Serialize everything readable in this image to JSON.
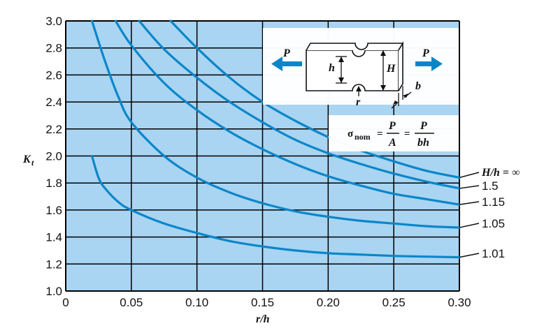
{
  "chart_data": {
    "type": "line",
    "xlabel": "r/h",
    "ylabel": "K",
    "ylabel_subscript": "t",
    "xlim": [
      0,
      0.3
    ],
    "ylim": [
      1.0,
      3.0
    ],
    "x_ticks": [
      "0",
      "0.05",
      "0.10",
      "0.15",
      "0.20",
      "0.25",
      "0.30"
    ],
    "y_ticks": [
      "1.0",
      "1.2",
      "1.4",
      "1.6",
      "1.8",
      "2.0",
      "2.2",
      "2.4",
      "2.6",
      "2.8",
      "3.0"
    ],
    "colors": {
      "plot_bg": "#a9d4f2",
      "curve": "#0a86c8",
      "grid": "#000000"
    },
    "series": [
      {
        "name": "H/h = ∞",
        "label": "H/h = ∞",
        "x": [
          0.08,
          0.1,
          0.125,
          0.15,
          0.175,
          0.2,
          0.225,
          0.25,
          0.275,
          0.3
        ],
        "values": [
          3.0,
          2.8,
          2.58,
          2.4,
          2.26,
          2.14,
          2.04,
          1.96,
          1.89,
          1.84
        ]
      },
      {
        "name": "1.5",
        "label": "1.5",
        "x": [
          0.056,
          0.075,
          0.1,
          0.125,
          0.15,
          0.175,
          0.2,
          0.225,
          0.25,
          0.275,
          0.3
        ],
        "values": [
          3.0,
          2.79,
          2.58,
          2.4,
          2.25,
          2.12,
          2.02,
          1.94,
          1.87,
          1.81,
          1.76
        ]
      },
      {
        "name": "1.15",
        "label": "1.15",
        "x": [
          0.038,
          0.05,
          0.075,
          0.1,
          0.125,
          0.15,
          0.175,
          0.2,
          0.225,
          0.25,
          0.275,
          0.3
        ],
        "values": [
          3.0,
          2.82,
          2.54,
          2.34,
          2.18,
          2.05,
          1.94,
          1.85,
          1.78,
          1.72,
          1.68,
          1.64
        ]
      },
      {
        "name": "1.05",
        "label": "1.05",
        "x": [
          0.02,
          0.03,
          0.04,
          0.05,
          0.075,
          0.1,
          0.125,
          0.15,
          0.175,
          0.2,
          0.225,
          0.25,
          0.275,
          0.3
        ],
        "values": [
          3.0,
          2.7,
          2.44,
          2.25,
          2.0,
          1.84,
          1.73,
          1.65,
          1.59,
          1.55,
          1.52,
          1.5,
          1.48,
          1.47
        ]
      },
      {
        "name": "1.01",
        "label": "1.01",
        "x": [
          0.02,
          0.025,
          0.03,
          0.04,
          0.05,
          0.075,
          0.1,
          0.125,
          0.15,
          0.175,
          0.2,
          0.225,
          0.25,
          0.275,
          0.3
        ],
        "values": [
          2.0,
          1.84,
          1.76,
          1.66,
          1.6,
          1.5,
          1.43,
          1.37,
          1.33,
          1.3,
          1.28,
          1.27,
          1.26,
          1.255,
          1.25
        ]
      }
    ],
    "inset": {
      "load_label": "P",
      "height_inner": "h",
      "height_outer": "H",
      "radius": "r",
      "thickness": "b",
      "formula_lhs": "σ",
      "formula_sub": "nom",
      "formula_eq": "=",
      "formula_p": "P",
      "formula_a": "A",
      "formula_bh": "bh"
    }
  }
}
